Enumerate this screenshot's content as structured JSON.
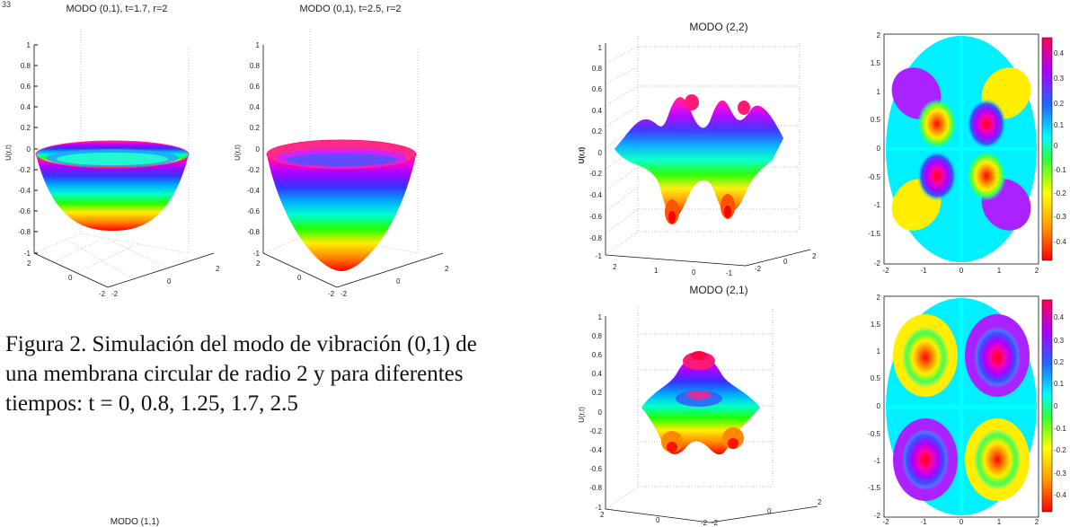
{
  "page_marker": "33",
  "caption": {
    "text": "Figura 2. Simulación del modo de vibración (0,1) de una membrana circular de radio 2 y para diferentes tiempos: t = 0, 0.8, 1.25, 1.7, 2.5"
  },
  "bottom_title": "MODO (1,1)",
  "plots": [
    {
      "title": "MODO (0,1), t=1.7, r=2",
      "ylabel": "U(r,t)"
    },
    {
      "title": "MODO (0,1), t=2.5, r=2",
      "ylabel": "U(r,t)"
    },
    {
      "title": "MODO (2,2)",
      "ylabel": "U(r,t)"
    },
    {
      "title": "MODO (2,1)",
      "ylabel": "U(r,t)"
    }
  ],
  "ticks": {
    "z_left": [
      "1",
      "0.8",
      "0.6",
      "0.4",
      "0.2",
      "0",
      "-0.2",
      "-0.4",
      "-0.6",
      "-0.8",
      "-1"
    ],
    "z_right": [
      "1",
      "0.8",
      "0.6",
      "0.4",
      "0.2",
      "0",
      "-0.2",
      "-0.4",
      "-0.6",
      "-0.8",
      "-1"
    ],
    "xy_left": [
      "2",
      "0",
      "-2",
      "-2",
      "0",
      "2"
    ],
    "contour_y": [
      "2",
      "1.5",
      "1",
      "0.5",
      "0",
      "-0.5",
      "-1",
      "-1.5",
      "-2"
    ],
    "contour_x": [
      "-2",
      "-1",
      "0",
      "1",
      "2"
    ],
    "colorbar": [
      "0.4",
      "0.3",
      "0.2",
      "0.1",
      "0",
      "-0.1",
      "-0.2",
      "-0.3",
      "-0.4"
    ]
  },
  "colors": {
    "rainbow": [
      "#ff0000",
      "#ff8800",
      "#ffee00",
      "#22ff00",
      "#00ffcc",
      "#00aaff",
      "#3333ff",
      "#aa00ff",
      "#ff00cc",
      "#ff0055"
    ]
  }
}
